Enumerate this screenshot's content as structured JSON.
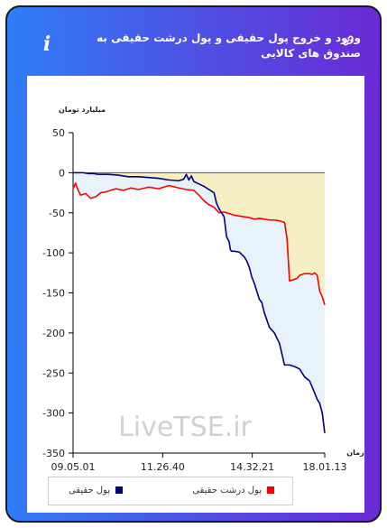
{
  "header": {
    "title": "ورود و خروج پول حقیقی و پول درشت حقیقی به صندوق های کالایی",
    "info_icon": "info-icon",
    "link_icon": "link-icon"
  },
  "chart_data": {
    "type": "line",
    "ylabel": "میلیارد تومان",
    "xlabel": "زمان",
    "ylim": [
      -350,
      50
    ],
    "yticks": [
      50,
      0,
      -50,
      -100,
      -150,
      -200,
      -250,
      -300,
      -350
    ],
    "xlim": [
      0,
      100
    ],
    "xtick_positions": [
      0,
      35.6,
      71.2,
      100
    ],
    "xtick_labels": [
      "09.05.01",
      "11.26.40",
      "14.32.21",
      "18.01.13"
    ],
    "grid": false,
    "fill_between": {
      "series_a": 0,
      "series_b": 1,
      "color": "#e8f2fb"
    },
    "fill_above": {
      "series": 1,
      "color": "#f6f0c4"
    },
    "watermark": "LiveTSE.ir",
    "legend_position": "bottom",
    "series": [
      {
        "name": "پول حقیقی",
        "color": "#000080",
        "x": [
          0,
          4,
          6,
          8,
          10,
          14,
          18,
          22,
          26,
          30,
          34,
          38,
          42,
          44,
          45,
          46,
          47,
          48,
          50,
          52,
          54,
          56,
          57,
          58,
          60,
          61,
          62,
          62.5,
          63,
          64,
          66,
          68,
          69,
          70,
          71,
          72,
          73,
          74,
          75,
          76,
          78,
          80,
          82,
          84,
          86,
          88,
          90,
          92,
          94,
          96,
          97,
          98,
          99,
          100
        ],
        "y": [
          0,
          0,
          -1,
          -1,
          -2,
          -2,
          -3,
          -5,
          -5,
          -6,
          -7,
          -9,
          -10,
          -8,
          -2,
          -9,
          -4,
          -11,
          -14,
          -17,
          -21,
          -25,
          -38,
          -45,
          -55,
          -80,
          -86,
          -96,
          -98,
          -98,
          -99,
          -105,
          -110,
          -118,
          -130,
          -138,
          -148,
          -158,
          -162,
          -175,
          -193,
          -200,
          -213,
          -240,
          -240,
          -242,
          -245,
          -255,
          -260,
          -275,
          -283,
          -288,
          -300,
          -325
        ]
      },
      {
        "name": "پول درشت حقیقی",
        "color": "#ff0000",
        "x": [
          0,
          1,
          2,
          3,
          5,
          7,
          9,
          11,
          13,
          15,
          17,
          20,
          23,
          26,
          30,
          34,
          38,
          42,
          45,
          48,
          50,
          52,
          54,
          56,
          58,
          60,
          62,
          64,
          66,
          68,
          70,
          72,
          74,
          76,
          78,
          80,
          82,
          84,
          85,
          86,
          88,
          89,
          90,
          92,
          94,
          95,
          96,
          97,
          98,
          99,
          100
        ],
        "y": [
          -20,
          -13,
          -22,
          -28,
          -26,
          -32,
          -30,
          -25,
          -24,
          -22,
          -20,
          -22,
          -19,
          -21,
          -18,
          -20,
          -16,
          -19,
          -21,
          -22,
          -28,
          -35,
          -40,
          -43,
          -50,
          -49,
          -51,
          -53,
          -54,
          -55,
          -56,
          -58,
          -57,
          -58,
          -59,
          -59,
          -60,
          -62,
          -82,
          -135,
          -133,
          -132,
          -128,
          -126,
          -126,
          -127,
          -125,
          -128,
          -148,
          -155,
          -165
        ]
      }
    ]
  }
}
